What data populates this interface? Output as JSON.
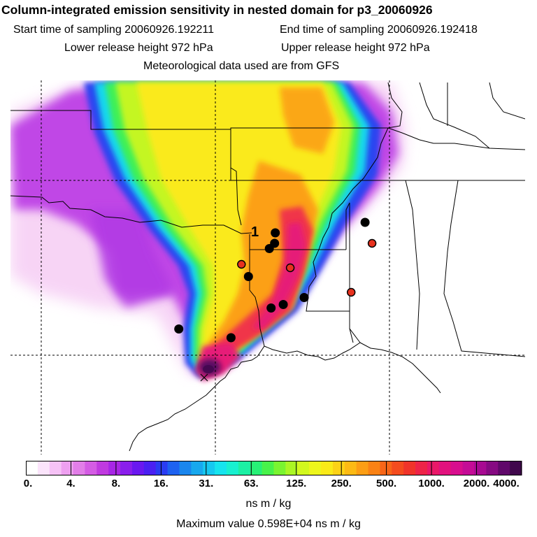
{
  "header": {
    "title": "Column-integrated emission sensitivity in nested domain for p3_20060926",
    "start_label": "Start time of sampling 20060926.192211",
    "end_label": "End time of sampling 20060926.192418",
    "lower_label": "Lower release height  972 hPa",
    "upper_label": "Upper release height  972 hPa",
    "met_label": "Meteorological data used are from GFS"
  },
  "map": {
    "release_label": "1",
    "markers": [
      {
        "lon": -93.45,
        "lat": 33.05,
        "color": "black"
      },
      {
        "lon": -93.3,
        "lat": 33.2,
        "color": "black"
      },
      {
        "lon": -93.28,
        "lat": 33.5,
        "color": "black"
      },
      {
        "lon": -90.7,
        "lat": 33.8,
        "color": "black"
      },
      {
        "lon": -94.25,
        "lat": 32.6,
        "color": "red"
      },
      {
        "lon": -94.05,
        "lat": 32.25,
        "color": "black"
      },
      {
        "lon": -92.85,
        "lat": 32.5,
        "color": "red"
      },
      {
        "lon": -90.5,
        "lat": 33.2,
        "color": "red"
      },
      {
        "lon": -91.1,
        "lat": 31.8,
        "color": "red"
      },
      {
        "lon": -92.45,
        "lat": 31.65,
        "color": "black"
      },
      {
        "lon": -93.05,
        "lat": 31.45,
        "color": "black"
      },
      {
        "lon": -93.4,
        "lat": 31.35,
        "color": "black"
      },
      {
        "lon": -96.05,
        "lat": 30.75,
        "color": "black"
      },
      {
        "lon": -94.55,
        "lat": 30.5,
        "color": "black"
      }
    ],
    "marker_colors": {
      "black": "#000000",
      "red": "#e8321e"
    }
  },
  "colorbar": {
    "tick_labels": [
      "0.",
      "4.",
      "8.",
      "16.",
      "31.",
      "63.",
      "125.",
      "250.",
      "500.",
      "1000.",
      "2000.",
      "4000."
    ],
    "colors": [
      "#ffffff",
      "#fbe4fb",
      "#f6c2f6",
      "#eea0f0",
      "#e27ee8",
      "#d45ce4",
      "#c03ae0",
      "#a826e6",
      "#8a1eec",
      "#6a18f0",
      "#4a20f2",
      "#2a3cf2",
      "#1e62f0",
      "#1a86ee",
      "#18a8ee",
      "#16c8f0",
      "#16e4ee",
      "#18f0d0",
      "#1cf0a4",
      "#28f076",
      "#48f24a",
      "#7af430",
      "#aaf624",
      "#d2f81e",
      "#eef61c",
      "#faea18",
      "#fcd216",
      "#fcba14",
      "#fc9e14",
      "#fa8214",
      "#f86618",
      "#f44c1e",
      "#f0342a",
      "#ee2448",
      "#ea1868",
      "#e2127e",
      "#d80e8e",
      "#c40c96",
      "#a80a92",
      "#860a82",
      "#60086a",
      "#40084c"
    ],
    "units": "ns m / kg",
    "max_value_label": "Maximum value  0.598E+04 ns m / kg"
  }
}
